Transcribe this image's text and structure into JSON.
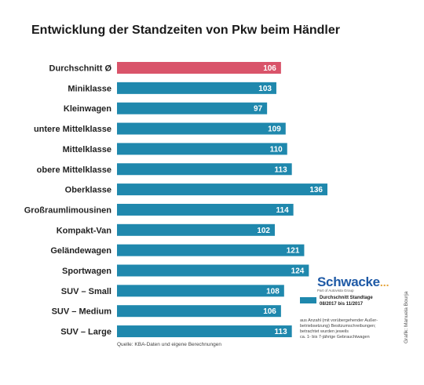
{
  "title": "Entwicklung der Standzeiten von Pkw beim Händler",
  "chart_data": {
    "type": "bar",
    "orientation": "horizontal",
    "title": "Entwicklung der Standzeiten von Pkw beim Händler",
    "categories": [
      "Durchschnitt Ø",
      "Miniklasse",
      "Kleinwagen",
      "untere Mittelklasse",
      "Mittelklasse",
      "obere Mittelklasse",
      "Oberklasse",
      "Großraumlimousinen",
      "Kompakt-Van",
      "Geländewagen",
      "Sportwagen",
      "SUV – Small",
      "SUV – Medium",
      "SUV – Large"
    ],
    "values": [
      106,
      103,
      97,
      109,
      110,
      113,
      136,
      114,
      102,
      121,
      124,
      108,
      106,
      113
    ],
    "data_labels": [
      "106",
      "103",
      "97",
      "109",
      "110",
      "113",
      "136",
      "114",
      "102",
      "121",
      "124",
      "108",
      "106",
      "113"
    ],
    "xlim": [
      0,
      136
    ],
    "grid": false,
    "colors": {
      "highlight": "#d9546a",
      "default": "#1f88ad"
    },
    "highlight_index": 0,
    "legend": {
      "position": "right",
      "entries": [
        {
          "label_line1": "Durchschnitt Standtage",
          "label_line2": "08/2017 bis 11/2017",
          "color": "#1f88ad"
        }
      ]
    }
  },
  "brand": {
    "name": "Schwacke",
    "dots": "...",
    "sub": "Part of Autovista Group"
  },
  "note_lines": [
    "aus Anzahl (mit vorübergehender Außer-",
    "betriebsetzung) Besitzumschreibungen;",
    "betrachtet wurden jeweils",
    "ca. 1- bis 7-jährige Gebrauchtwagen"
  ],
  "source": "Quelle: KBA-Daten und eigene Berechnungen",
  "credit": "Grafik: Manuela Bourja"
}
